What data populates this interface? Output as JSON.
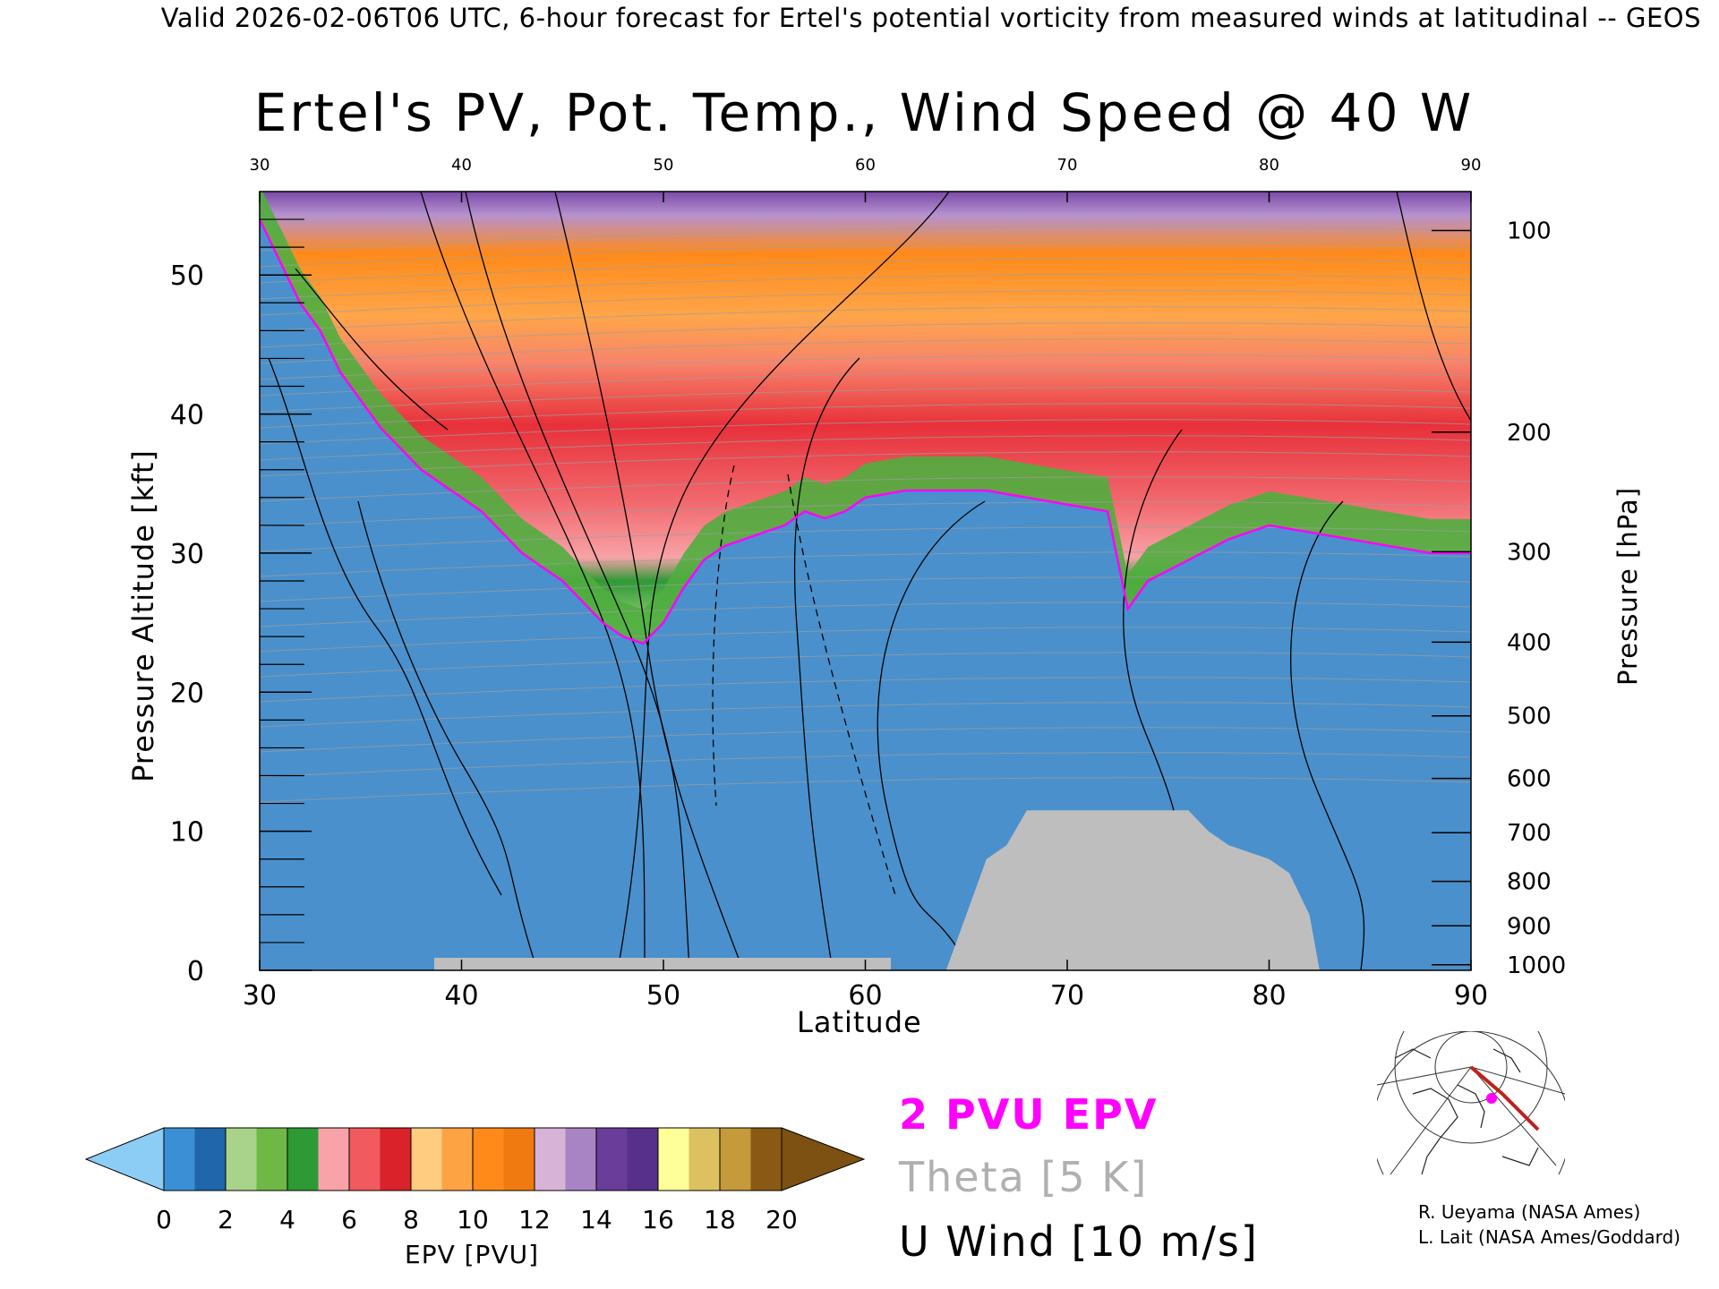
{
  "header": {
    "subtitle": "Valid 2026-02-06T06 UTC, 6-hour forecast for Ertel's potential vorticity from measured winds at latitudinal -- GEOS"
  },
  "chart_data": {
    "type": "heatmap",
    "title": "Ertel's PV, Pot. Temp., Wind Speed @ 40 W",
    "xlabel": "Latitude",
    "ylabel": "Pressure Altitude [kft]",
    "y2label": "Pressure [hPa]",
    "xlim": [
      30,
      90
    ],
    "ylim": [
      0,
      56
    ],
    "x_ticks": [
      30,
      40,
      50,
      60,
      70,
      80,
      90
    ],
    "y_ticks": [
      0,
      10,
      20,
      30,
      40,
      50
    ],
    "pressure_ticks": [
      {
        "label": "100",
        "kft": 53.2
      },
      {
        "label": "200",
        "kft": 38.7
      },
      {
        "label": "300",
        "kft": 30.1
      },
      {
        "label": "400",
        "kft": 23.6
      },
      {
        "label": "500",
        "kft": 18.3
      },
      {
        "label": "600",
        "kft": 13.8
      },
      {
        "label": "700",
        "kft": 9.9
      },
      {
        "label": "800",
        "kft": 6.4
      },
      {
        "label": "900",
        "kft": 3.2
      },
      {
        "label": "1000",
        "kft": 0.4
      }
    ],
    "tropopause_2pvu_kft": [
      [
        30,
        54
      ],
      [
        31,
        51
      ],
      [
        32,
        48
      ],
      [
        33,
        46
      ],
      [
        34,
        43
      ],
      [
        35,
        41
      ],
      [
        36,
        39
      ],
      [
        37,
        37.5
      ],
      [
        38,
        36
      ],
      [
        39,
        35
      ],
      [
        40,
        34
      ],
      [
        41,
        33
      ],
      [
        42,
        31.5
      ],
      [
        43,
        30
      ],
      [
        44,
        29
      ],
      [
        45,
        28
      ],
      [
        46,
        26.5
      ],
      [
        47,
        25
      ],
      [
        48,
        24
      ],
      [
        49,
        23.5
      ],
      [
        50,
        25
      ],
      [
        51,
        27.5
      ],
      [
        52,
        29.5
      ],
      [
        53,
        30.5
      ],
      [
        54,
        31
      ],
      [
        55,
        31.5
      ],
      [
        56,
        32
      ],
      [
        57,
        33
      ],
      [
        58,
        32.5
      ],
      [
        59,
        33
      ],
      [
        60,
        34
      ],
      [
        62,
        34.5
      ],
      [
        64,
        34.5
      ],
      [
        66,
        34.5
      ],
      [
        68,
        34
      ],
      [
        70,
        33.5
      ],
      [
        72,
        33
      ],
      [
        73,
        26
      ],
      [
        74,
        28
      ],
      [
        76,
        29.5
      ],
      [
        78,
        31
      ],
      [
        80,
        32
      ],
      [
        82,
        31.5
      ],
      [
        84,
        31
      ],
      [
        86,
        30.5
      ],
      [
        88,
        30
      ],
      [
        90,
        30
      ]
    ],
    "terrain_kft": [
      [
        64,
        0
      ],
      [
        65,
        4
      ],
      [
        66,
        8
      ],
      [
        67,
        9
      ],
      [
        68,
        11.5
      ],
      [
        72,
        11.5
      ],
      [
        76,
        11.5
      ],
      [
        77,
        10
      ],
      [
        78,
        9
      ],
      [
        80,
        8
      ],
      [
        81,
        7
      ],
      [
        82,
        4
      ],
      [
        82.5,
        0
      ]
    ],
    "colorbar": {
      "label": "EPV [PVU]",
      "ticks": [
        "0",
        "2",
        "4",
        "6",
        "8",
        "10",
        "12",
        "14",
        "16",
        "18",
        "20"
      ],
      "colors": [
        "#3b8fd4",
        "#1f66aa",
        "#a9d38a",
        "#6fb846",
        "#2e9a35",
        "#f7a3a7",
        "#f15a5e",
        "#d9222a",
        "#ffcc80",
        "#fea344",
        "#ff8a1a",
        "#f07a10",
        "#d8b3d8",
        "#a884c4",
        "#6a3d9a",
        "#56308a",
        "#ffff99",
        "#ddc060",
        "#c49a3a",
        "#8a5a14"
      ],
      "under_color": "#8ccdf5",
      "over_color": "#7d5111"
    },
    "legend": {
      "position": "bottom-right",
      "pv": "2 PVU EPV",
      "theta": "Theta [5 K]",
      "uwind": "U Wind [10 m/s]"
    }
  },
  "credits": {
    "line1": "R. Ueyama (NASA Ames)",
    "line2": "L. Lait (NASA Ames/Goddard)"
  }
}
